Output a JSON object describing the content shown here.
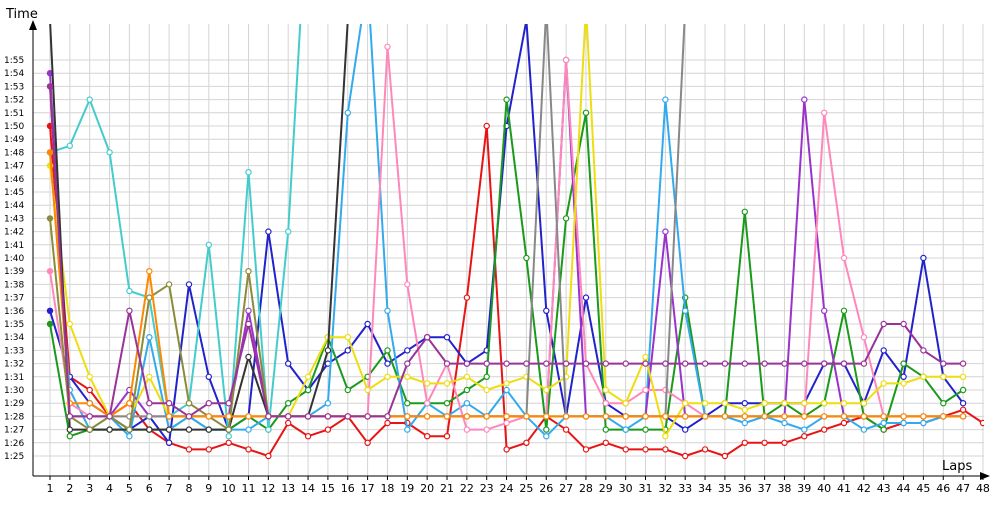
{
  "chart_data": {
    "type": "line",
    "xlabel": "Laps",
    "ylabel": "Time",
    "x_ticks": [
      "1",
      "2",
      "3",
      "4",
      "5",
      "6",
      "7",
      "8",
      "9",
      "10",
      "11",
      "12",
      "13",
      "14",
      "15",
      "16",
      "17",
      "18",
      "19",
      "20",
      "21",
      "22",
      "23",
      "24",
      "25",
      "26",
      "27",
      "28",
      "29",
      "30",
      "31",
      "32",
      "33",
      "34",
      "35",
      "36",
      "37",
      "38",
      "39",
      "40",
      "41",
      "42",
      "43",
      "44",
      "45",
      "46",
      "47",
      "48"
    ],
    "y_ticks": [
      "1:25",
      "1:26",
      "1:27",
      "1:28",
      "1:29",
      "1:30",
      "1:31",
      "1:32",
      "1:33",
      "1:34",
      "1:35",
      "1:36",
      "1:37",
      "1:38",
      "1:39",
      "1:40",
      "1:41",
      "1:42",
      "1:43",
      "1:44",
      "1:45",
      "1:46",
      "1:47",
      "1:48",
      "1:49",
      "1:50",
      "1:51",
      "1:52",
      "1:53",
      "1:54",
      "1:55"
    ],
    "x_range": [
      1,
      48
    ],
    "ylim": [
      84,
      116
    ],
    "grid": true,
    "legend": "none",
    "series": [
      {
        "color": "#e81414",
        "values": [
          110,
          91,
          90,
          88,
          89,
          87,
          86,
          85.5,
          85.5,
          86,
          85.5,
          85,
          87.5,
          86.5,
          87,
          88,
          86,
          87.5,
          87.5,
          86.5,
          86.5,
          97,
          110,
          85.5,
          86,
          88,
          87,
          85.5,
          86,
          85.5,
          85.5,
          85.5,
          85,
          85.5,
          85,
          86,
          86,
          86,
          86.5,
          87,
          87.5,
          88,
          87,
          87.5,
          87.5,
          88,
          88.5,
          87.5
        ]
      },
      {
        "color": "#2222cc",
        "values": [
          96,
          91,
          89,
          88,
          87,
          88,
          86,
          98,
          91,
          87,
          88,
          102,
          92,
          90,
          92,
          93,
          95,
          92,
          93,
          94,
          94,
          92,
          93,
          110,
          118,
          96,
          88,
          97,
          89,
          88,
          88,
          88,
          87,
          88,
          89,
          89,
          89,
          89,
          89,
          92,
          92,
          89,
          93,
          91,
          100,
          91,
          89
        ]
      },
      {
        "color": "#1a9a1a",
        "values": [
          95,
          86.5,
          87,
          87,
          87,
          87,
          87,
          88,
          87,
          87,
          88,
          87,
          89,
          90,
          94,
          90,
          91,
          93,
          89,
          89,
          89,
          90,
          91,
          112,
          100,
          87,
          103,
          111,
          87,
          87,
          87,
          87,
          97,
          88,
          88,
          103.5,
          88,
          89,
          88,
          89,
          96,
          88,
          87,
          92,
          91,
          89,
          90
        ]
      },
      {
        "color": "#33aaee",
        "values": [
          108,
          90,
          87,
          88,
          86.5,
          94,
          87,
          88,
          87,
          87,
          87,
          88,
          88,
          88,
          89,
          111,
          121,
          96,
          87,
          89,
          88,
          89,
          88,
          90,
          88,
          86.5,
          88,
          88,
          88,
          87,
          88,
          112,
          96,
          88,
          88,
          87.5,
          88,
          87.5,
          87,
          88,
          88,
          87,
          87.5,
          87.5,
          87.5,
          88,
          88
        ]
      },
      {
        "color": "#44cccc",
        "values": [
          108,
          108.5,
          112,
          108,
          97.5,
          97,
          88,
          89,
          101,
          86.5,
          106.5,
          87,
          102,
          128
        ]
      },
      {
        "color": "#9933cc",
        "values": [
          114,
          88,
          88,
          88,
          90,
          88,
          88,
          88,
          88,
          88,
          96,
          88,
          88,
          88,
          88,
          88,
          88,
          88,
          88,
          88,
          88,
          88,
          88,
          88,
          88,
          88,
          115,
          88,
          88,
          88,
          88,
          102,
          88,
          88,
          88,
          88,
          88,
          88,
          112,
          96,
          88,
          88,
          88,
          88,
          88,
          88,
          88
        ]
      },
      {
        "color": "#ff88bb",
        "values": [
          99,
          89,
          88,
          88,
          88,
          88,
          88,
          88,
          88,
          88,
          88,
          88,
          88,
          88,
          88,
          88,
          88,
          116,
          98,
          89,
          92,
          87,
          87,
          87.5,
          88,
          88,
          115,
          92,
          89,
          89,
          90,
          90,
          89,
          88,
          88,
          88,
          88,
          88,
          88,
          111,
          100,
          94,
          88,
          88,
          88,
          88,
          88
        ]
      },
      {
        "color": "#eedd11",
        "values": [
          107,
          95,
          91,
          88,
          88,
          91,
          88,
          88,
          88,
          88,
          88,
          88,
          88,
          91,
          94,
          94,
          90,
          91,
          91,
          90.5,
          90.5,
          91,
          90,
          90.5,
          91,
          90,
          91,
          119,
          90,
          89,
          92.5,
          86.5,
          89,
          89,
          89,
          88.5,
          89,
          89,
          89,
          89,
          89,
          89,
          90.5,
          90.5,
          91,
          91,
          91
        ]
      },
      {
        "color": "#888888",
        "values": [
          113,
          88,
          88,
          88,
          88,
          88,
          88,
          88,
          88,
          88,
          88,
          88,
          88,
          88,
          88,
          88,
          88,
          88,
          88,
          88,
          88,
          88,
          88,
          88,
          88,
          119,
          88,
          88,
          88,
          88,
          88,
          88,
          119
        ]
      },
      {
        "color": "#333333",
        "values": [
          118,
          87,
          87,
          87,
          87,
          87,
          87,
          87,
          87,
          87,
          92.5,
          88,
          88,
          88,
          93,
          118
        ]
      },
      {
        "color": "#8b8b3a",
        "values": [
          103,
          88,
          87,
          88,
          87,
          97,
          98,
          89,
          88,
          87,
          99,
          88,
          88,
          88,
          88,
          88,
          88,
          88,
          88,
          88,
          88,
          88,
          88,
          88,
          88,
          88,
          88,
          88,
          88,
          88,
          88,
          88,
          88,
          88,
          88,
          88,
          88,
          88,
          88,
          88,
          88,
          88,
          88,
          88,
          88,
          88,
          88
        ]
      },
      {
        "color": "#ff8800",
        "values": [
          108,
          89,
          89,
          88,
          89,
          99,
          88,
          88,
          88,
          88,
          88,
          88,
          88,
          88,
          88,
          88,
          88,
          88,
          88,
          88,
          88,
          88,
          88,
          88,
          88,
          88,
          88,
          88,
          88,
          88,
          88,
          88,
          88,
          88,
          88,
          88,
          88,
          88,
          88,
          88,
          88,
          88,
          88,
          88,
          88,
          88,
          88
        ]
      },
      {
        "color": "#993399",
        "values": [
          113,
          88,
          88,
          88,
          96,
          89,
          89,
          88,
          89,
          89,
          95,
          88,
          88,
          88,
          88,
          88,
          88,
          88,
          92,
          94,
          92,
          92,
          92,
          92,
          92,
          92,
          92,
          92,
          92,
          92,
          92,
          92,
          92,
          92,
          92,
          92,
          92,
          92,
          92,
          92,
          92,
          92,
          95,
          95,
          93,
          92,
          92
        ]
      }
    ]
  }
}
